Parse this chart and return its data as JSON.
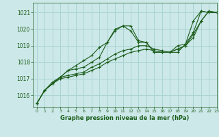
{
  "title": "Graphe pression niveau de la mer (hPa)",
  "bg_color": "#cce8e8",
  "grid_color": "#aad4d4",
  "line_color": "#1a5c1a",
  "xlim": [
    -0.5,
    23
  ],
  "ylim": [
    1015.3,
    1021.6
  ],
  "yticks": [
    1016,
    1017,
    1018,
    1019,
    1020,
    1021
  ],
  "xticks": [
    0,
    1,
    2,
    3,
    4,
    5,
    6,
    7,
    8,
    9,
    10,
    11,
    12,
    13,
    14,
    15,
    16,
    17,
    18,
    19,
    20,
    21,
    22,
    23
  ],
  "series": [
    [
      1015.5,
      1016.3,
      1016.8,
      1017.1,
      1017.5,
      1017.8,
      1018.1,
      1018.4,
      1018.9,
      1019.2,
      1019.9,
      1020.2,
      1020.2,
      1019.3,
      1019.2,
      1018.6,
      1018.6,
      1018.6,
      1018.6,
      1019.1,
      1020.5,
      1021.1,
      1021.0,
      1021.0
    ],
    [
      1015.5,
      1016.3,
      1016.7,
      1017.1,
      1017.5,
      1017.6,
      1017.7,
      1018.0,
      1018.3,
      1019.2,
      1020.0,
      1020.2,
      1019.9,
      1019.2,
      1019.2,
      1018.6,
      1018.6,
      1018.6,
      1019.0,
      1019.1,
      1019.8,
      1021.1,
      1021.0,
      1021.0
    ],
    [
      1015.5,
      1016.3,
      1016.7,
      1017.1,
      1017.2,
      1017.3,
      1017.4,
      1017.7,
      1017.9,
      1018.2,
      1018.5,
      1018.7,
      1018.8,
      1019.0,
      1019.0,
      1018.8,
      1018.7,
      1018.6,
      1018.8,
      1019.0,
      1019.7,
      1020.5,
      1021.1,
      1021.0
    ],
    [
      1015.5,
      1016.3,
      1016.7,
      1017.0,
      1017.1,
      1017.2,
      1017.3,
      1017.5,
      1017.7,
      1018.0,
      1018.2,
      1018.4,
      1018.6,
      1018.7,
      1018.8,
      1018.7,
      1018.6,
      1018.6,
      1018.8,
      1019.0,
      1019.5,
      1020.5,
      1021.1,
      1021.0
    ]
  ]
}
